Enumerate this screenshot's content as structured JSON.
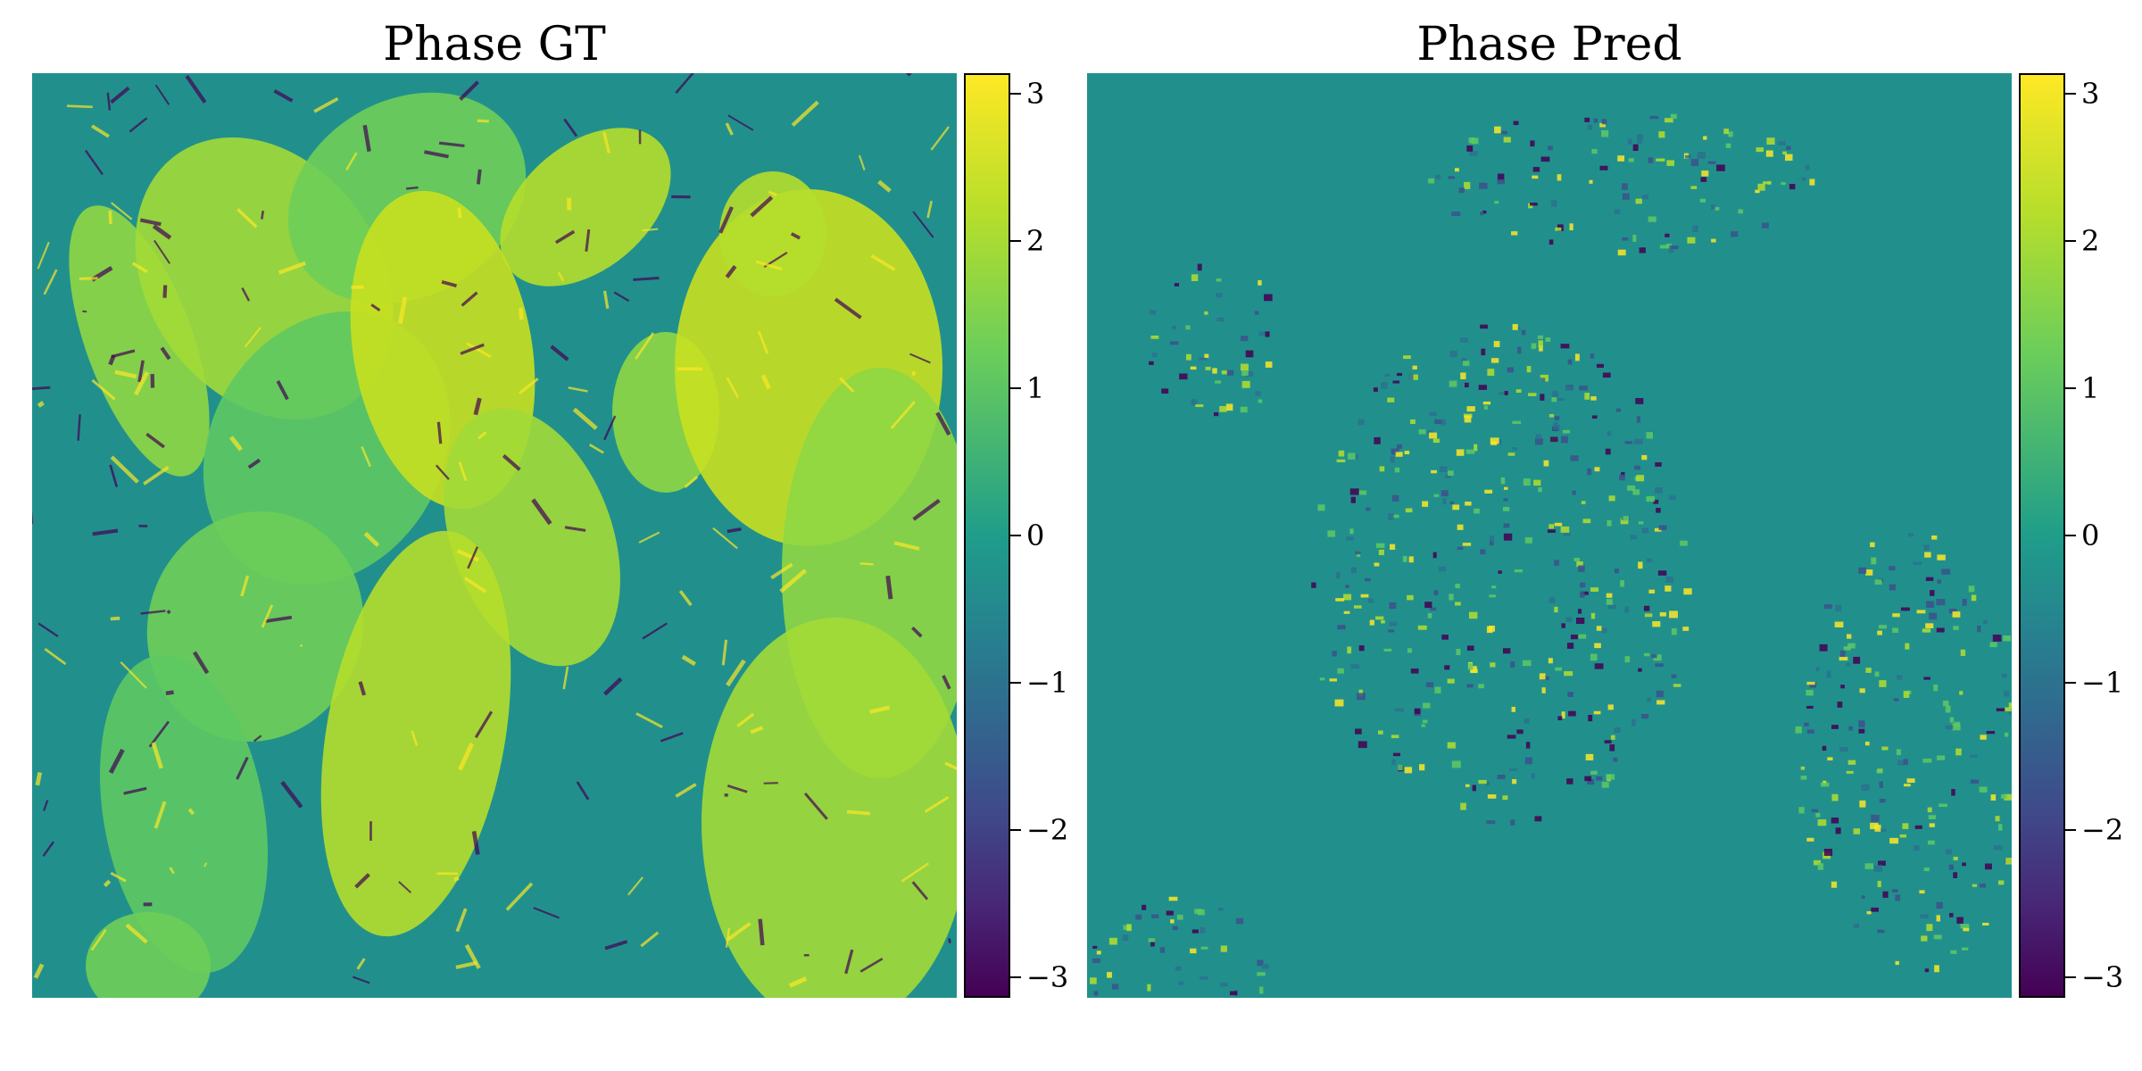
{
  "chart_data": [
    {
      "type": "heatmap",
      "title": "Phase GT",
      "colormap": "viridis",
      "clim": [
        -3.14159,
        3.14159
      ],
      "colorbar_ticks": [
        "3",
        "2",
        "1",
        "0",
        "−1",
        "−2",
        "−3"
      ],
      "colorbar_values": [
        3,
        2,
        1,
        0,
        -1,
        -2,
        -3
      ],
      "background_value": 0,
      "content": "cell phase map with bright elongated cells on flat background"
    },
    {
      "type": "heatmap",
      "title": "Phase Pred",
      "colormap": "viridis",
      "clim": [
        -3.14159,
        3.14159
      ],
      "colorbar_ticks": [
        "3",
        "2",
        "1",
        "0",
        "−1",
        "−2",
        "−3"
      ],
      "colorbar_values": [
        3,
        2,
        1,
        0,
        -1,
        -2,
        -3
      ],
      "background_value": 0,
      "content": "predicted phase map with noisy speckled regions"
    }
  ],
  "colors": {
    "vmin": "#440154",
    "mid": "#21908d",
    "vmax": "#fde725"
  }
}
